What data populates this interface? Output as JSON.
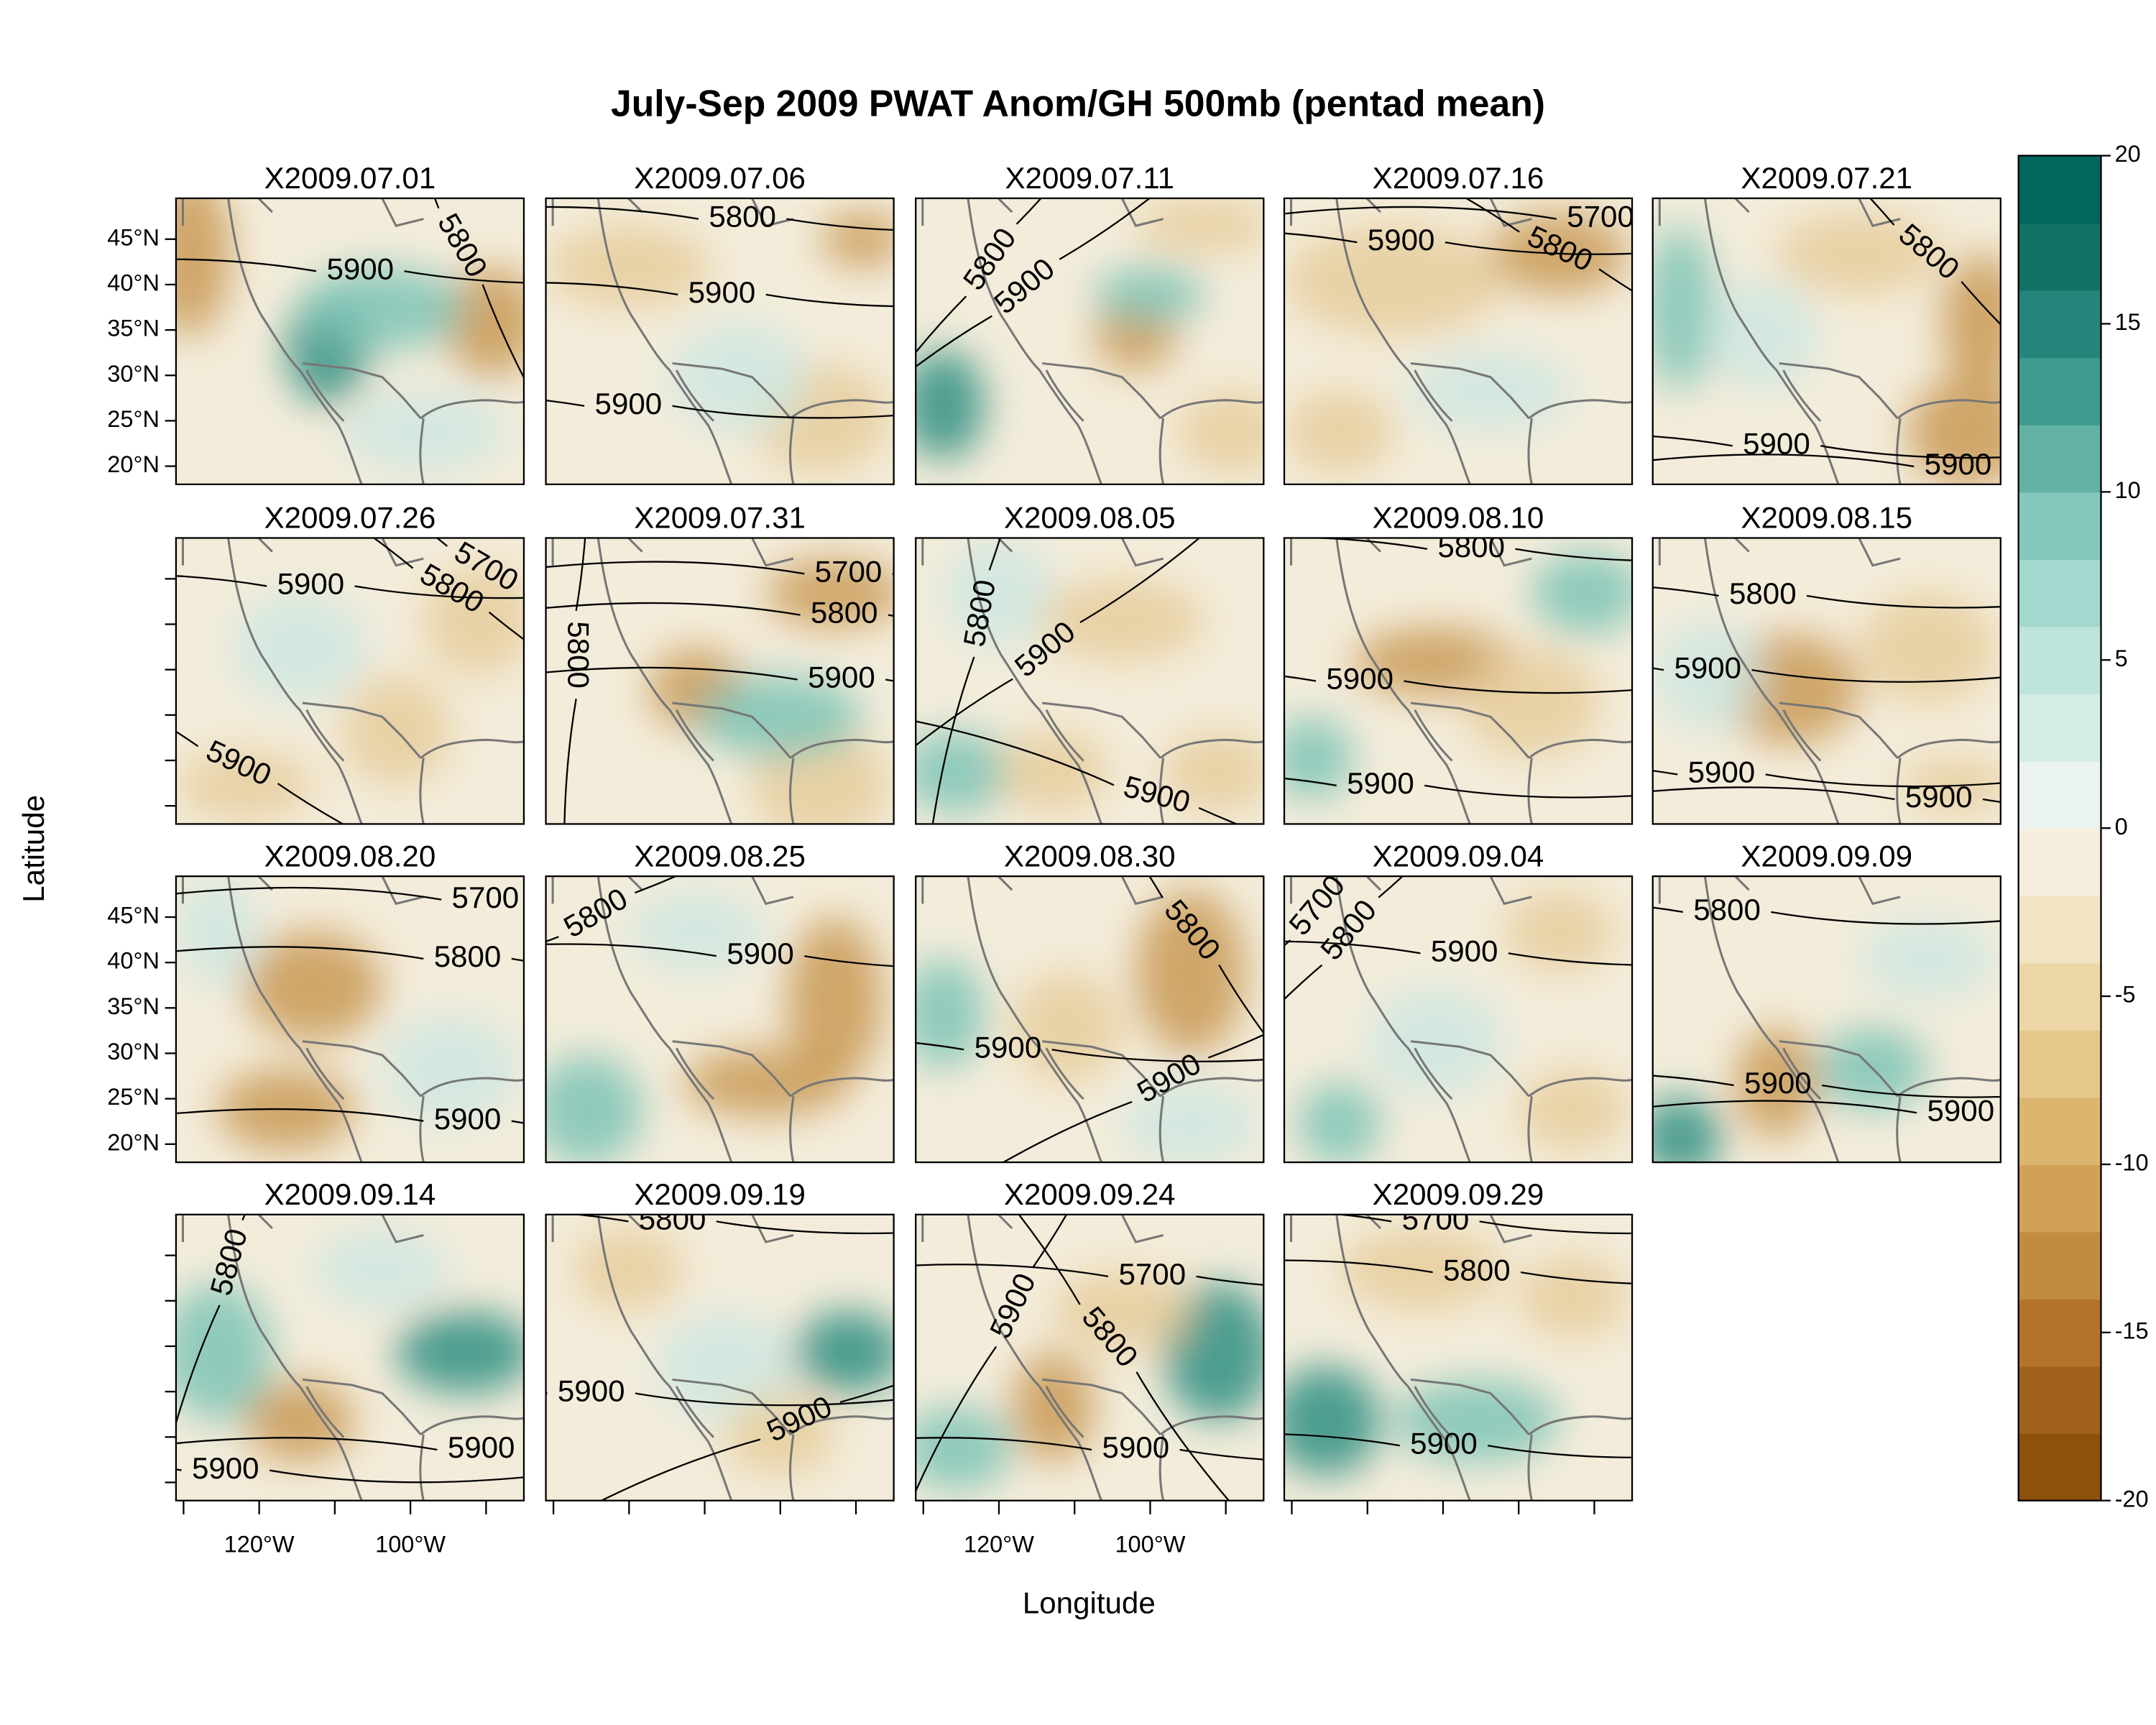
{
  "chart_data": {
    "type": "map",
    "title": "July-Sep 2009 PWAT Anom/GH 500mb (pentad mean)",
    "xlabel": "Longitude",
    "ylabel": "Latitude",
    "xlim": [
      -131,
      -85
    ],
    "ylim": [
      18,
      49.5
    ],
    "xticks": [
      {
        "value": -130,
        "label": null
      },
      {
        "value": -120,
        "label": "120°W"
      },
      {
        "value": -110,
        "label": null
      },
      {
        "value": -100,
        "label": "100°W"
      },
      {
        "value": -90,
        "label": null
      }
    ],
    "yticks": [
      {
        "value": 20,
        "label": "20°N"
      },
      {
        "value": 25,
        "label": "25°N"
      },
      {
        "value": 30,
        "label": "30°N"
      },
      {
        "value": 35,
        "label": "35°N"
      },
      {
        "value": 40,
        "label": "40°N"
      },
      {
        "value": 45,
        "label": "45°N"
      }
    ],
    "colorbar": {
      "lim": [
        -20,
        20
      ],
      "ticks": [
        -20,
        -15,
        -10,
        -5,
        0,
        5,
        10,
        15,
        20
      ],
      "levels": [
        -20,
        -18,
        -16,
        -14,
        -12,
        -10,
        -8,
        -6,
        -4,
        -2,
        0,
        2,
        4,
        6,
        8,
        10,
        12,
        14,
        16,
        18,
        20
      ],
      "colors": [
        "#8c510a",
        "#a0621a",
        "#b3742a",
        "#c38b3f",
        "#d2a158",
        "#dcb56f",
        "#e5c78a",
        "#ecd6a6",
        "#f2e4c3",
        "#f5eedd",
        "#ebf3ef",
        "#d4ece6",
        "#bfe4dc",
        "#a3d8ce",
        "#84c8bb",
        "#62b3a5",
        "#3f9b8e",
        "#25857a",
        "#137266",
        "#01665e"
      ]
    },
    "panels": [
      {
        "title": "X2009.07.01",
        "contours": [
          5900,
          5800
        ]
      },
      {
        "title": "X2009.07.06",
        "contours": [
          5800,
          5900,
          5900
        ]
      },
      {
        "title": "X2009.07.11",
        "contours": [
          5800,
          5900
        ]
      },
      {
        "title": "X2009.07.16",
        "contours": [
          5900,
          5800,
          5700
        ]
      },
      {
        "title": "X2009.07.21",
        "contours": [
          5800,
          5900,
          5900
        ]
      },
      {
        "title": "X2009.07.26",
        "contours": [
          5900,
          5800,
          5700,
          5900
        ]
      },
      {
        "title": "X2009.07.31",
        "contours": [
          5700,
          5800,
          5900,
          5800
        ]
      },
      {
        "title": "X2009.08.05",
        "contours": [
          5900,
          5800,
          5900
        ]
      },
      {
        "title": "X2009.08.10",
        "contours": [
          5800,
          5900,
          5900
        ]
      },
      {
        "title": "X2009.08.15",
        "contours": [
          5800,
          5900,
          5900,
          5900
        ]
      },
      {
        "title": "X2009.08.20",
        "contours": [
          5700,
          5800,
          5900
        ]
      },
      {
        "title": "X2009.08.25",
        "contours": [
          5800,
          5900
        ]
      },
      {
        "title": "X2009.08.30",
        "contours": [
          5800,
          5900,
          5900
        ]
      },
      {
        "title": "X2009.09.04",
        "contours": [
          5900,
          5800,
          5700
        ]
      },
      {
        "title": "X2009.09.09",
        "contours": [
          5800,
          5900,
          5900
        ]
      },
      {
        "title": "X2009.09.14",
        "contours": [
          5800,
          5900,
          5900
        ]
      },
      {
        "title": "X2009.09.19",
        "contours": [
          5800,
          5900,
          5900
        ]
      },
      {
        "title": "X2009.09.24",
        "contours": [
          5700,
          5800,
          5900,
          5900
        ]
      },
      {
        "title": "X2009.09.29",
        "contours": [
          5700,
          5800,
          5900
        ]
      }
    ]
  }
}
